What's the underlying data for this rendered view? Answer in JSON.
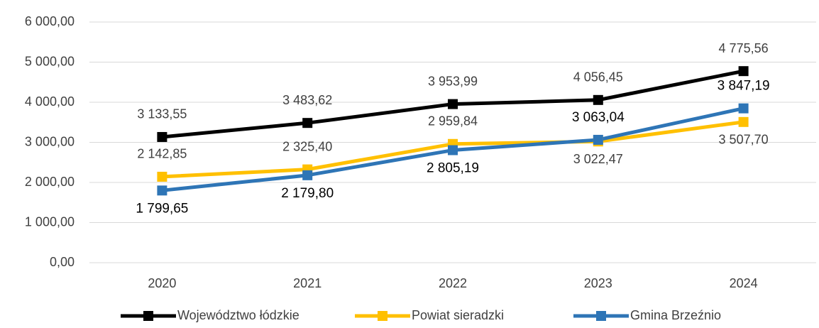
{
  "chart_data": {
    "type": "line",
    "categories": [
      "2020",
      "2021",
      "2022",
      "2023",
      "2024"
    ],
    "series": [
      {
        "name": "Województwo łódzkie",
        "color": "#000000",
        "values": [
          3133.55,
          3483.62,
          3953.99,
          4056.45,
          4775.56
        ],
        "value_labels": [
          "3 133,55",
          "3 483,62",
          "3 953,99",
          "4 056,45",
          "4 775,56"
        ]
      },
      {
        "name": "Powiat sieradzki",
        "color": "#ffc000",
        "values": [
          2142.85,
          2325.4,
          2959.84,
          3022.47,
          3507.7
        ],
        "value_labels": [
          "2 142,85",
          "2 325,40",
          "2 959,84",
          "3 022,47",
          "3 507,70"
        ]
      },
      {
        "name": "Gmina Brzeźnio",
        "color": "#2e75b6",
        "values": [
          1799.65,
          2179.8,
          2805.19,
          3063.04,
          3847.19
        ],
        "value_labels": [
          "1 799,65",
          "2 179,80",
          "2 805,19",
          "3 063,04",
          "3 847,19"
        ]
      }
    ],
    "ylim": [
      0,
      6000
    ],
    "yticks": [
      {
        "value": 0,
        "label": "0,00"
      },
      {
        "value": 1000,
        "label": "1 000,00"
      },
      {
        "value": 2000,
        "label": "2 000,00"
      },
      {
        "value": 3000,
        "label": "3 000,00"
      },
      {
        "value": 4000,
        "label": "4 000,00"
      },
      {
        "value": 5000,
        "label": "5 000,00"
      },
      {
        "value": 6000,
        "label": "6 000,00"
      }
    ],
    "grid": true,
    "legend": "bottom"
  }
}
